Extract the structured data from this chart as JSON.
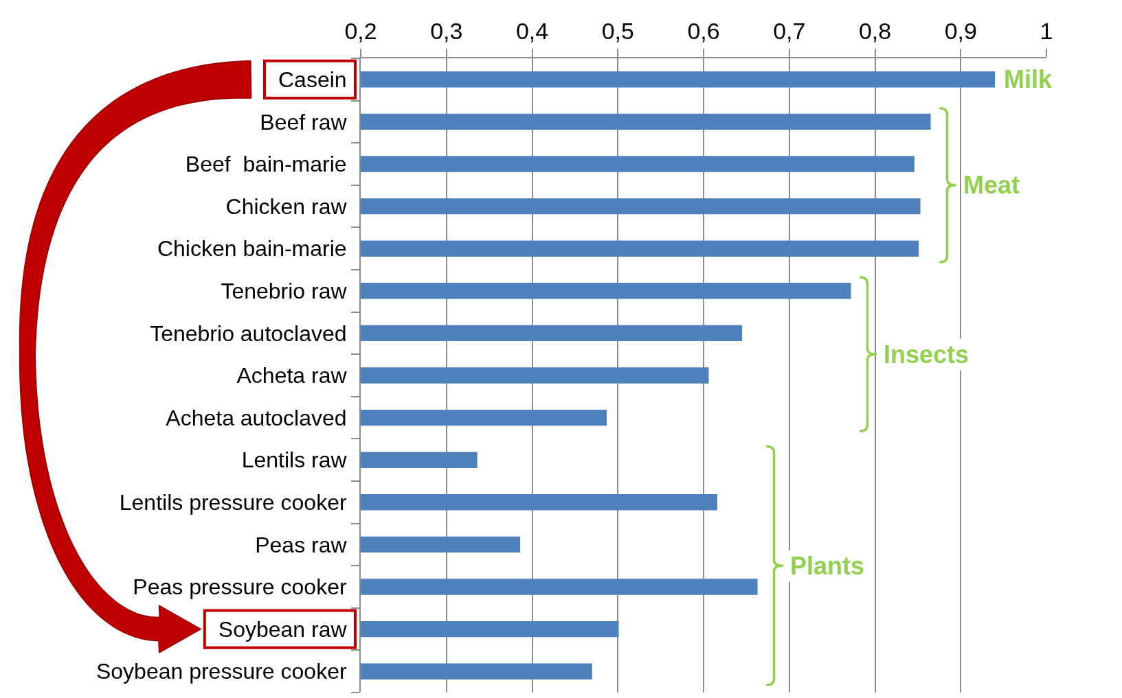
{
  "chart_data": {
    "type": "bar",
    "orientation": "horizontal",
    "categories": [
      "Casein",
      "Beef raw",
      "Beef  bain-marie",
      "Chicken raw",
      "Chicken bain-marie",
      "Tenebrio raw",
      "Tenebrio autoclaved",
      "Acheta raw",
      "Acheta autoclaved",
      "Lentils raw",
      "Lentils pressure cooker",
      "Peas raw",
      "Peas pressure cooker",
      "Soybean raw",
      "Soybean pressure cooker"
    ],
    "values": [
      0.94,
      0.865,
      0.846,
      0.853,
      0.851,
      0.772,
      0.645,
      0.606,
      0.487,
      0.336,
      0.616,
      0.386,
      0.663,
      0.501,
      0.47
    ],
    "color": "#4f81bd",
    "xlim": [
      0.2,
      1
    ],
    "xticks": [
      {
        "value": 0.2,
        "label": "0,2"
      },
      {
        "value": 0.3,
        "label": "0,3"
      },
      {
        "value": 0.4,
        "label": "0,4"
      },
      {
        "value": 0.5,
        "label": "0,5"
      },
      {
        "value": 0.6,
        "label": "0,6"
      },
      {
        "value": 0.7,
        "label": "0,7"
      },
      {
        "value": 0.8,
        "label": "0,8"
      },
      {
        "value": 0.9,
        "label": "0,9"
      },
      1
    ],
    "grid": "x",
    "annotations": [
      "Milk",
      "Meat",
      "Insects",
      "Plants"
    ]
  }
}
